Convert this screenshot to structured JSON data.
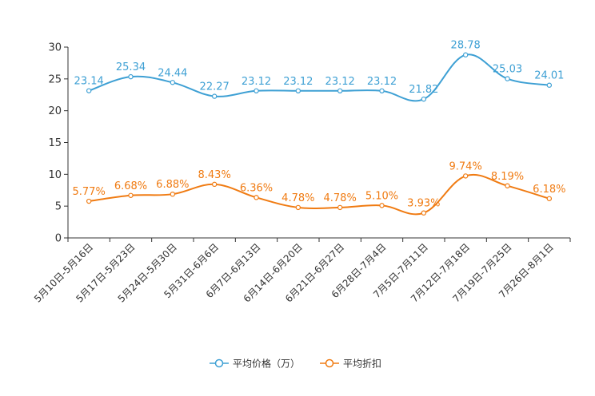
{
  "chart_data": {
    "type": "line",
    "title": "",
    "xlabel": "",
    "ylabel": "",
    "ylim": [
      0,
      30
    ],
    "yticks": [
      0,
      5,
      10,
      15,
      20,
      25,
      30
    ],
    "categories": [
      "5月10日-5月16日",
      "5月17日-5月23日",
      "5月24日-5月30日",
      "5月31日-6月6日",
      "6月7日-6月13日",
      "6月14日-6月20日",
      "6月21日-6月27日",
      "6月28日-7月4日",
      "7月5日-7月11日",
      "7月12日-7月18日",
      "7月19日-7月25日",
      "7月26日-8月1日"
    ],
    "series": [
      {
        "name": "平均价格（万）",
        "color": "#3ea0d4",
        "values": [
          23.14,
          25.34,
          24.44,
          22.27,
          23.12,
          23.12,
          23.12,
          23.12,
          21.82,
          28.78,
          25.03,
          24.01
        ],
        "labels": [
          "23.14",
          "25.34",
          "24.44",
          "22.27",
          "23.12",
          "23.12",
          "23.12",
          "23.12",
          "21.82",
          "28.78",
          "25.03",
          "24.01"
        ]
      },
      {
        "name": "平均折扣",
        "color": "#f07b12",
        "values": [
          5.77,
          6.68,
          6.88,
          8.43,
          6.36,
          4.78,
          4.78,
          5.1,
          3.93,
          9.74,
          8.19,
          6.18
        ],
        "labels": [
          "5.77%",
          "6.68%",
          "6.88%",
          "8.43%",
          "6.36%",
          "4.78%",
          "4.78%",
          "5.10%",
          "3.93%",
          "9.74%",
          "8.19%",
          "6.18%"
        ]
      }
    ],
    "legend_position": "bottom-center"
  }
}
